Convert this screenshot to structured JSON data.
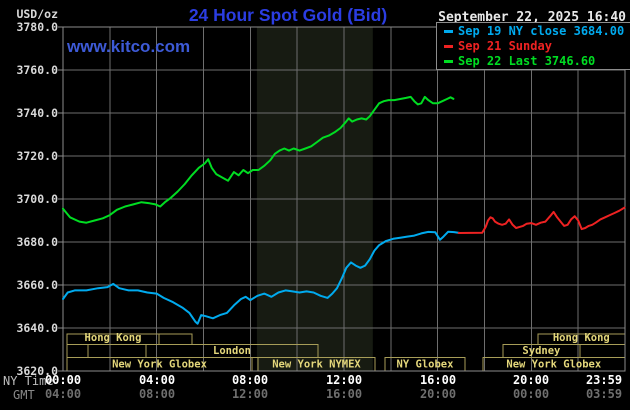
{
  "header": {
    "units_label": "USD/oz",
    "title": "24 Hour Spot Gold (Bid)",
    "datetime": "September 22, 2025 16:40",
    "watermark": "www.kitco.com"
  },
  "legend": {
    "items": [
      {
        "label": "Sep 19 NY close 3684.00",
        "color": "#00aaee"
      },
      {
        "label": "Sep 21 Sunday",
        "color": "#ee2222"
      },
      {
        "label": "Sep 22 Last 3746.60",
        "color": "#00dd22"
      }
    ]
  },
  "axes": {
    "ny_time_label": "NY Time",
    "gmt_label": "GMT",
    "x_ticks_ny": [
      "00:00",
      "04:00",
      "08:00",
      "12:00",
      "16:00",
      "20:00",
      "23:59"
    ],
    "x_ticks_gmt": [
      "04:00",
      "08:00",
      "12:00",
      "16:00",
      "20:00",
      "00:00",
      "03:59"
    ],
    "y_ticks": [
      "3780.0",
      "3760.0",
      "3740.0",
      "3720.0",
      "3700.0",
      "3680.0",
      "3660.0",
      "3640.0",
      "3620.0"
    ]
  },
  "sessions": [
    {
      "row": 0,
      "start": 0.17,
      "end": 4.1,
      "label": "Hong Kong"
    },
    {
      "row": 0,
      "start": 4.1,
      "end": 5.51,
      "label": ""
    },
    {
      "row": 0,
      "start": 20.28,
      "end": 23.99,
      "label": "Hong Kong"
    },
    {
      "row": 1,
      "start": 0.17,
      "end": 1.07,
      "label": ""
    },
    {
      "row": 1,
      "start": 1.07,
      "end": 3.54,
      "label": ""
    },
    {
      "row": 1,
      "start": 3.54,
      "end": 10.89,
      "label": "London"
    },
    {
      "row": 1,
      "start": 18.79,
      "end": 22.07,
      "label": "Sydney"
    },
    {
      "row": 1,
      "start": 22.07,
      "end": 23.99,
      "label": ""
    },
    {
      "row": 2,
      "start": 0.17,
      "end": 8.07,
      "label": "New York Globex"
    },
    {
      "row": 2,
      "start": 8.33,
      "end": 13.32,
      "label": "New York NYMEX"
    },
    {
      "row": 2,
      "start": 13.75,
      "end": 17.17,
      "label": "NY Globex"
    },
    {
      "row": 2,
      "start": 17.93,
      "end": 23.99,
      "label": "New York Globex"
    }
  ],
  "chart_data": {
    "type": "line",
    "title": "24 Hour Spot Gold (Bid)",
    "xlabel": "NY Time (hours)",
    "ylabel": "USD/oz",
    "xlim": [
      0,
      24
    ],
    "ylim": [
      3620,
      3780
    ],
    "y_tick_step": 20,
    "grid": true,
    "legend_position": "top-right",
    "highlight_band_hours": [
      8.28,
      13.23
    ],
    "highlight_band_color": "#171b12",
    "series": [
      {
        "id": "sep19",
        "name": "Sep 19 NY close 3684.00",
        "color": "#00aaee",
        "points": [
          [
            0,
            3653.5
          ],
          [
            0.2,
            3656.5
          ],
          [
            0.5,
            3657.5
          ],
          [
            1.0,
            3657.5
          ],
          [
            1.5,
            3658.5
          ],
          [
            1.9,
            3659
          ],
          [
            2.15,
            3660.5
          ],
          [
            2.4,
            3658.5
          ],
          [
            2.8,
            3657.5
          ],
          [
            3.2,
            3657.5
          ],
          [
            3.6,
            3656.5
          ],
          [
            4.0,
            3656
          ],
          [
            4.3,
            3654
          ],
          [
            4.7,
            3652
          ],
          [
            5.1,
            3649.5
          ],
          [
            5.4,
            3647
          ],
          [
            5.65,
            3643
          ],
          [
            5.75,
            3642
          ],
          [
            5.9,
            3646
          ],
          [
            6.1,
            3645.5
          ],
          [
            6.4,
            3644.5
          ],
          [
            6.7,
            3646
          ],
          [
            7.0,
            3647
          ],
          [
            7.3,
            3650.5
          ],
          [
            7.6,
            3653.5
          ],
          [
            7.8,
            3654.5
          ],
          [
            8.0,
            3653
          ],
          [
            8.3,
            3655
          ],
          [
            8.6,
            3656
          ],
          [
            8.9,
            3654.5
          ],
          [
            9.2,
            3656.5
          ],
          [
            9.5,
            3657.5
          ],
          [
            9.8,
            3657
          ],
          [
            10.1,
            3656.5
          ],
          [
            10.4,
            3657
          ],
          [
            10.7,
            3656.5
          ],
          [
            11.0,
            3655
          ],
          [
            11.3,
            3654
          ],
          [
            11.5,
            3656
          ],
          [
            11.7,
            3658.5
          ],
          [
            11.9,
            3663
          ],
          [
            12.1,
            3668
          ],
          [
            12.3,
            3670.5
          ],
          [
            12.5,
            3669
          ],
          [
            12.7,
            3668
          ],
          [
            12.9,
            3669
          ],
          [
            13.1,
            3672
          ],
          [
            13.3,
            3676
          ],
          [
            13.5,
            3678.5
          ],
          [
            13.8,
            3680.5
          ],
          [
            14.1,
            3681.5
          ],
          [
            14.4,
            3682
          ],
          [
            14.7,
            3682.5
          ],
          [
            15.0,
            3683
          ],
          [
            15.3,
            3684
          ],
          [
            15.6,
            3684.7
          ],
          [
            15.9,
            3684.5
          ],
          [
            16.1,
            3681
          ],
          [
            16.25,
            3682.5
          ],
          [
            16.45,
            3684.8
          ],
          [
            16.7,
            3684.6
          ],
          [
            16.95,
            3684.2
          ]
        ]
      },
      {
        "id": "sep21",
        "name": "Sep 21 Sunday",
        "color": "#ee2222",
        "points": [
          [
            16.9,
            3684.2
          ],
          [
            17.9,
            3684.3
          ],
          [
            18.05,
            3687
          ],
          [
            18.15,
            3690
          ],
          [
            18.25,
            3691.5
          ],
          [
            18.35,
            3691
          ],
          [
            18.45,
            3689.5
          ],
          [
            18.6,
            3688.5
          ],
          [
            18.75,
            3688
          ],
          [
            18.9,
            3688.5
          ],
          [
            19.05,
            3690.5
          ],
          [
            19.2,
            3688
          ],
          [
            19.35,
            3686.5
          ],
          [
            19.5,
            3687
          ],
          [
            19.65,
            3687.5
          ],
          [
            19.8,
            3688.5
          ],
          [
            20.0,
            3688.8
          ],
          [
            20.2,
            3688
          ],
          [
            20.4,
            3689
          ],
          [
            20.6,
            3689.5
          ],
          [
            20.8,
            3692
          ],
          [
            20.95,
            3694
          ],
          [
            21.1,
            3691.5
          ],
          [
            21.25,
            3689.5
          ],
          [
            21.4,
            3687.5
          ],
          [
            21.55,
            3688
          ],
          [
            21.7,
            3690.5
          ],
          [
            21.85,
            3692
          ],
          [
            22.0,
            3690
          ],
          [
            22.15,
            3686
          ],
          [
            22.3,
            3686.5
          ],
          [
            22.45,
            3687.5
          ],
          [
            22.6,
            3688
          ],
          [
            22.75,
            3689
          ],
          [
            22.95,
            3690.5
          ],
          [
            23.15,
            3691.5
          ],
          [
            23.35,
            3692.5
          ],
          [
            23.55,
            3693.5
          ],
          [
            23.75,
            3694.5
          ],
          [
            23.98,
            3696
          ]
        ]
      },
      {
        "id": "sep22",
        "name": "Sep 22 Last 3746.60",
        "color": "#00dd22",
        "points": [
          [
            0,
            3695.5
          ],
          [
            0.3,
            3691.5
          ],
          [
            0.7,
            3689.5
          ],
          [
            1.0,
            3689
          ],
          [
            1.35,
            3690
          ],
          [
            1.7,
            3691
          ],
          [
            2.0,
            3692.5
          ],
          [
            2.3,
            3695
          ],
          [
            2.65,
            3696.5
          ],
          [
            3.0,
            3697.5
          ],
          [
            3.35,
            3698.5
          ],
          [
            3.7,
            3698
          ],
          [
            3.95,
            3697.5
          ],
          [
            4.15,
            3696.5
          ],
          [
            4.35,
            3698.5
          ],
          [
            4.6,
            3700.5
          ],
          [
            4.9,
            3703.5
          ],
          [
            5.2,
            3707
          ],
          [
            5.5,
            3711
          ],
          [
            5.8,
            3714.5
          ],
          [
            6.05,
            3716.5
          ],
          [
            6.2,
            3718.5
          ],
          [
            6.35,
            3714.5
          ],
          [
            6.55,
            3711.5
          ],
          [
            6.8,
            3710
          ],
          [
            7.05,
            3708.5
          ],
          [
            7.3,
            3712.5
          ],
          [
            7.5,
            3711
          ],
          [
            7.7,
            3713.5
          ],
          [
            7.9,
            3712
          ],
          [
            8.1,
            3713.5
          ],
          [
            8.35,
            3713.5
          ],
          [
            8.6,
            3715.5
          ],
          [
            8.85,
            3718
          ],
          [
            9.05,
            3721
          ],
          [
            9.25,
            3722.5
          ],
          [
            9.45,
            3723.5
          ],
          [
            9.65,
            3722.5
          ],
          [
            9.85,
            3723.5
          ],
          [
            10.1,
            3722.5
          ],
          [
            10.35,
            3723.5
          ],
          [
            10.6,
            3724.5
          ],
          [
            10.85,
            3726.5
          ],
          [
            11.1,
            3728.5
          ],
          [
            11.35,
            3729.5
          ],
          [
            11.6,
            3731
          ],
          [
            11.85,
            3733
          ],
          [
            12.05,
            3735.5
          ],
          [
            12.2,
            3737.5
          ],
          [
            12.35,
            3736
          ],
          [
            12.55,
            3737
          ],
          [
            12.75,
            3737.5
          ],
          [
            12.95,
            3737
          ],
          [
            13.1,
            3738.5
          ],
          [
            13.3,
            3741.5
          ],
          [
            13.5,
            3744.5
          ],
          [
            13.7,
            3745.5
          ],
          [
            13.9,
            3746
          ],
          [
            14.15,
            3746
          ],
          [
            14.4,
            3746.5
          ],
          [
            14.65,
            3747
          ],
          [
            14.85,
            3747.5
          ],
          [
            15.0,
            3745.5
          ],
          [
            15.15,
            3744
          ],
          [
            15.3,
            3744.5
          ],
          [
            15.45,
            3747.5
          ],
          [
            15.6,
            3746
          ],
          [
            15.8,
            3744.5
          ],
          [
            16.0,
            3744.5
          ],
          [
            16.2,
            3745.5
          ],
          [
            16.4,
            3746.5
          ],
          [
            16.55,
            3747.3
          ],
          [
            16.67,
            3746.6
          ]
        ]
      }
    ]
  }
}
